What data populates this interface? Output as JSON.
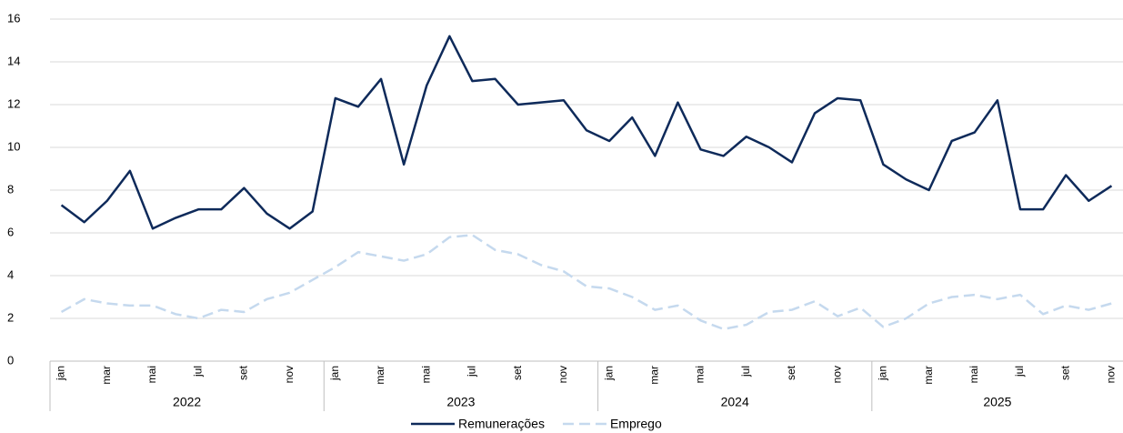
{
  "chart_data": {
    "type": "line",
    "categories": [
      "jan",
      null,
      "mar",
      null,
      "mai",
      null,
      "jul",
      null,
      "set",
      null,
      "nov",
      null,
      "jan",
      null,
      "mar",
      null,
      "mai",
      null,
      "jul",
      null,
      "set",
      null,
      "nov",
      null,
      "jan",
      null,
      "mar",
      null,
      "mai",
      null,
      "jul",
      null,
      "set",
      null,
      "nov",
      null,
      "jan",
      null,
      "mar",
      null,
      "mai",
      null,
      "jul",
      null,
      "set",
      null,
      "nov"
    ],
    "groups": [
      "2022",
      "2023",
      "2024",
      "2025"
    ],
    "series": [
      {
        "name": "Remunerações",
        "color": "#0e2a5a",
        "dash": false,
        "values": [
          7.3,
          6.5,
          7.5,
          8.9,
          6.2,
          6.7,
          7.1,
          7.1,
          8.1,
          6.9,
          6.2,
          7.0,
          12.3,
          11.9,
          13.2,
          9.2,
          12.9,
          15.2,
          13.1,
          13.2,
          12.0,
          12.1,
          12.2,
          10.8,
          10.3,
          11.4,
          9.6,
          12.1,
          9.9,
          9.6,
          10.5,
          10.0,
          9.3,
          11.6,
          12.3,
          12.2,
          9.2,
          8.5,
          8.0,
          10.3,
          10.7,
          12.2,
          7.1,
          7.1,
          8.7,
          7.5,
          8.2
        ]
      },
      {
        "name": "Emprego",
        "color": "#c5d9ee",
        "dash": true,
        "values": [
          2.3,
          2.9,
          2.7,
          2.6,
          2.6,
          2.2,
          2.0,
          2.4,
          2.3,
          2.9,
          3.2,
          3.8,
          4.4,
          5.1,
          4.9,
          4.7,
          5.0,
          5.8,
          5.9,
          5.2,
          5.0,
          4.5,
          4.2,
          3.5,
          3.4,
          3.0,
          2.4,
          2.6,
          1.9,
          1.5,
          1.7,
          2.3,
          2.4,
          2.8,
          2.1,
          2.5,
          1.6,
          2.0,
          2.7,
          3.0,
          3.1,
          2.9,
          3.1,
          2.2,
          2.6,
          2.4,
          2.7
        ]
      }
    ],
    "ylim": [
      0,
      16
    ],
    "yticks": [
      0,
      2,
      4,
      6,
      8,
      10,
      12,
      14,
      16
    ],
    "grid": true
  }
}
